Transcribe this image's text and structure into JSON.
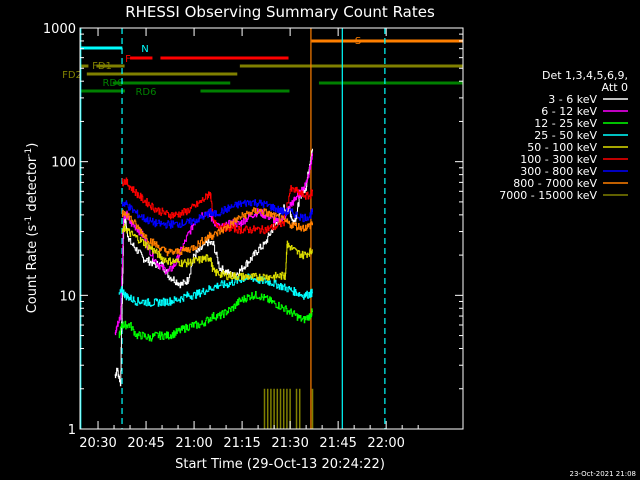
{
  "chart_data": {
    "type": "line",
    "title": "RHESSI Observing Summary Count Rates",
    "xlabel": "Start Time (29-Oct-13 20:24:22)",
    "ylabel_main": "Count Rate (s",
    "ylabel_sup": "-1",
    "ylabel_mid": " detector",
    "ylabel_end": ")",
    "yscale": "log",
    "ylim": [
      1,
      1000
    ],
    "xlim_min": [
      24.37,
      144
    ],
    "x_ticks": [
      {
        "min": 30,
        "label": "20:30"
      },
      {
        "min": 45,
        "label": "20:45"
      },
      {
        "min": 60,
        "label": "21:00"
      },
      {
        "min": 75,
        "label": "21:15"
      },
      {
        "min": 90,
        "label": "21:30"
      },
      {
        "min": 105,
        "label": "21:45"
      },
      {
        "min": 120,
        "label": "22:00"
      }
    ],
    "y_ticks": [
      {
        "value": 1,
        "label": "1"
      },
      {
        "value": 10,
        "label": "10"
      },
      {
        "value": 100,
        "label": "100"
      },
      {
        "value": 1000,
        "label": "1000"
      }
    ],
    "legend_header": [
      "Det 1,3,4,5,6,9,",
      "Att 0"
    ],
    "timestamp": "23-Oct-2021 21:08",
    "series": [
      {
        "name": "3 - 6 keV",
        "color": "#ffffff",
        "x": [
          35.3,
          36,
          37,
          38,
          38.5,
          39,
          40,
          42,
          44,
          46,
          48,
          50,
          52,
          54,
          56,
          58,
          60,
          62,
          64,
          66,
          68,
          70,
          72,
          74,
          76,
          78,
          80,
          82,
          84,
          86,
          88,
          90,
          91,
          92,
          93,
          94,
          95,
          96,
          97
        ],
        "y": [
          2.5,
          2.8,
          2.2,
          35,
          38,
          30,
          25,
          22,
          19,
          18,
          17,
          17,
          14,
          13,
          12,
          13,
          20,
          22,
          25,
          24,
          16,
          15,
          14,
          15,
          17,
          19,
          22,
          24,
          30,
          36,
          45,
          42,
          35,
          40,
          55,
          60,
          65,
          95,
          125
        ]
      },
      {
        "name": "6 - 12 keV",
        "color": "#ff00ff",
        "x": [
          35.3,
          36,
          37,
          38,
          39,
          40,
          42,
          44,
          46,
          48,
          50,
          52,
          54,
          56,
          58,
          60,
          62,
          64,
          66,
          68,
          70,
          72,
          74,
          76,
          78,
          80,
          82,
          84,
          86,
          88,
          90,
          91,
          92,
          93,
          94,
          95,
          96,
          97
        ],
        "y": [
          5,
          6,
          7,
          40,
          40,
          35,
          32,
          28,
          22,
          18,
          16,
          15,
          17,
          22,
          28,
          35,
          40,
          42,
          36,
          32,
          33,
          35,
          34,
          37,
          40,
          42,
          40,
          38,
          35,
          38,
          47,
          50,
          55,
          58,
          62,
          70,
          85,
          110
        ]
      },
      {
        "name": "12 - 25 keV",
        "color": "#00ff00",
        "x": [
          36.5,
          37.5,
          38.5,
          40,
          42,
          44,
          46,
          48,
          50,
          52,
          54,
          56,
          58,
          60,
          62,
          64,
          66,
          68,
          70,
          72,
          74,
          76,
          78,
          80,
          82,
          84,
          86,
          88,
          90,
          92,
          94,
          96,
          97
        ],
        "y": [
          5,
          6,
          6,
          6,
          5,
          5,
          4.8,
          5,
          5,
          5,
          5.2,
          5.5,
          5.8,
          6,
          6,
          6.5,
          7,
          7,
          7.5,
          8,
          9,
          9.5,
          10,
          10,
          9.5,
          9,
          8.5,
          8,
          7.5,
          7,
          6.5,
          7,
          7.5
        ]
      },
      {
        "name": "25 - 50 keV",
        "color": "#00ffff",
        "x": [
          36.5,
          37.5,
          38.5,
          40,
          42,
          44,
          46,
          48,
          50,
          52,
          54,
          56,
          58,
          60,
          62,
          64,
          66,
          68,
          70,
          72,
          74,
          76,
          78,
          80,
          82,
          84,
          86,
          88,
          90,
          92,
          94,
          96,
          97
        ],
        "y": [
          10,
          11,
          10,
          9.5,
          9,
          9,
          8.8,
          8.8,
          8.9,
          9,
          9.2,
          9.5,
          10,
          10,
          10.5,
          11,
          11.5,
          12,
          12,
          12.5,
          13,
          13.5,
          13.5,
          13,
          12.8,
          12.5,
          12,
          11.5,
          11,
          10.5,
          10,
          10.2,
          10.5
        ]
      },
      {
        "name": "50 - 100 keV",
        "color": "#dddd00",
        "x": [
          37.5,
          38.5,
          40,
          42,
          44,
          46,
          48,
          50,
          52,
          54,
          56,
          58,
          60,
          62,
          64,
          65,
          66,
          68,
          70,
          72,
          74,
          76,
          78,
          80,
          82,
          84,
          86,
          88,
          88.5,
          89,
          90,
          92,
          94,
          96,
          97
        ],
        "y": [
          30,
          32,
          29,
          27,
          25,
          23,
          21,
          19,
          18,
          18,
          17.5,
          17.5,
          18,
          18.5,
          19,
          19.2,
          15,
          14.5,
          14,
          14,
          13.8,
          13.8,
          13.7,
          13.7,
          13.8,
          13.8,
          13.9,
          14,
          14,
          24,
          23,
          21,
          20,
          21,
          22
        ]
      },
      {
        "name": "100 - 300 keV",
        "color": "#ff0000",
        "x": [
          37.5,
          38.5,
          40,
          42,
          44,
          46,
          48,
          50,
          52,
          54,
          56,
          58,
          60,
          62,
          64,
          65,
          66,
          68,
          70,
          72,
          74,
          76,
          78,
          80,
          82,
          84,
          86,
          88,
          90,
          92,
          94,
          96,
          97
        ],
        "y": [
          70,
          72,
          65,
          58,
          52,
          48,
          44,
          42,
          40,
          40,
          41,
          43,
          46,
          50,
          55,
          60,
          35,
          33,
          32,
          32,
          31,
          31,
          31,
          31,
          31,
          32,
          33,
          35,
          62,
          60,
          56,
          55,
          60
        ]
      },
      {
        "name": "300 - 800 keV",
        "color": "#0000ff",
        "x": [
          37.5,
          38.5,
          40,
          42,
          44,
          46,
          48,
          50,
          52,
          54,
          56,
          58,
          60,
          62,
          64,
          65,
          66,
          68,
          70,
          72,
          74,
          76,
          78,
          80,
          82,
          84,
          86,
          88,
          90,
          92,
          94,
          96,
          97
        ],
        "y": [
          48,
          49,
          45,
          41,
          38,
          36,
          34.5,
          34,
          34,
          34,
          34.5,
          35,
          36,
          38,
          40,
          42,
          40,
          42,
          44,
          46,
          48,
          49,
          50,
          49,
          48,
          46,
          44,
          42,
          42,
          40,
          38,
          39,
          42
        ]
      },
      {
        "name": "800 - 7000 keV",
        "color": "#ff7f00",
        "x": [
          37.5,
          38.5,
          40,
          42,
          44,
          46,
          48,
          50,
          52,
          54,
          56,
          58,
          60,
          62,
          64,
          65,
          66,
          68,
          70,
          72,
          74,
          76,
          78,
          80,
          82,
          84,
          86,
          88,
          90,
          92,
          94,
          96,
          97
        ],
        "y": [
          40,
          42,
          38,
          33,
          29,
          26,
          24,
          22,
          21,
          21,
          21.5,
          22,
          23,
          25,
          27,
          28,
          28,
          30,
          32,
          35,
          38,
          40,
          42,
          43,
          42,
          40,
          38,
          36,
          34,
          33,
          32,
          33,
          35
        ]
      },
      {
        "name": "7000 - 15000 keV",
        "color": "#808000",
        "x": [],
        "y": []
      }
    ],
    "flag_bars": [
      {
        "label": "N",
        "color": "#00ffff",
        "segments": [
          [
            24.37,
            37.6
          ]
        ],
        "level": 0
      },
      {
        "label": "F",
        "color": "#ff0000",
        "segments": [
          [
            40,
            47
          ],
          [
            49.5,
            89.5
          ]
        ],
        "level": 1
      },
      {
        "label": "FD1",
        "color": "#808000",
        "segments": [
          [
            24.37,
            27.0
          ],
          [
            29.5,
            38.3
          ],
          [
            74.3,
            144
          ]
        ],
        "level": 2
      },
      {
        "label": "FD2",
        "color": "#808000",
        "segments": [
          [
            26.5,
            73.5
          ]
        ],
        "level": 3
      },
      {
        "label": "RD0",
        "color": "#008000",
        "segments": [
          [
            34.6,
            71.3
          ],
          [
            99,
            144
          ]
        ],
        "level": 4
      },
      {
        "label": "RD6",
        "color": "#008000",
        "segments": [
          [
            24.37,
            38.4
          ],
          [
            62,
            89.8
          ]
        ],
        "level": 5
      },
      {
        "label": "S",
        "color": "#ff7f00",
        "segments": [
          [
            96.7,
            144
          ]
        ],
        "level": -1
      }
    ],
    "vlines": [
      {
        "min": 24.6,
        "color": "#00ffff",
        "dashed": false
      },
      {
        "min": 37.5,
        "color": "#00ffff",
        "dashed": true
      },
      {
        "min": 96.5,
        "color": "#ff7f00",
        "dashed": false
      },
      {
        "min": 106.3,
        "color": "#00ffff",
        "dashed": false
      },
      {
        "min": 119.6,
        "color": "#00ffff",
        "dashed": true
      }
    ],
    "spike_x": [
      82,
      83,
      84,
      85,
      86,
      87,
      88,
      89,
      90,
      92,
      93,
      97
    ]
  }
}
